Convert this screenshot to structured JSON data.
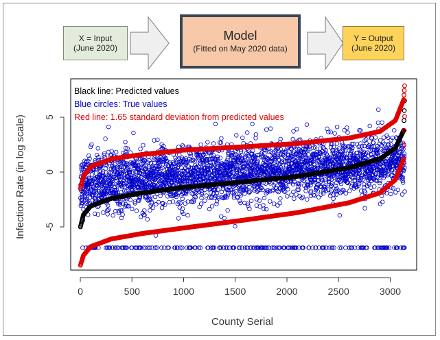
{
  "flow": {
    "input_label": "X = Input",
    "input_sub": "(June 2020)",
    "model_title": "Model",
    "model_sub": "(Fitted on May 2020 data)",
    "output_label": "Y = Output",
    "output_sub": "(June 2020)",
    "colors": {
      "input_fill": "#e3ecdc",
      "model_fill": "#f8c9a8",
      "model_border": "#3a4658",
      "output_fill": "#fdd35a",
      "arrow_fill": "#efefef"
    }
  },
  "chart_data": {
    "type": "scatter",
    "xlabel": "County Serial",
    "ylabel": "Infection Rate (in log scale)",
    "xlim": [
      0,
      3200
    ],
    "ylim": [
      -9,
      8
    ],
    "x_ticks": [
      "0",
      "500",
      "1000",
      "1500",
      "2000",
      "2500",
      "3000"
    ],
    "y_ticks": [
      "-5",
      "0",
      "5"
    ],
    "legend": [
      {
        "text": "Black line: Predicted values",
        "color": "#000000"
      },
      {
        "text": "Blue circles: True values",
        "color": "#0000cc"
      },
      {
        "text": "Red line: 1.65 standard deviation from predicted values",
        "color": "#e00000"
      }
    ],
    "n_points": 3140,
    "series": [
      {
        "role": "predicted",
        "color": "#000000",
        "anchors_x": [
          1,
          30,
          100,
          300,
          600,
          1000,
          1570,
          2100,
          2600,
          2900,
          3050,
          3130,
          3140
        ],
        "anchors_y": [
          -5.0,
          -3.9,
          -3.1,
          -2.4,
          -1.9,
          -1.4,
          -0.9,
          -0.4,
          0.4,
          1.2,
          2.2,
          3.8,
          6.8
        ]
      },
      {
        "role": "upper_bound",
        "color": "#e00000",
        "anchors_x": [
          1,
          30,
          100,
          300,
          600,
          1000,
          1570,
          2100,
          2600,
          2900,
          3050,
          3130,
          3140
        ],
        "anchors_y": [
          -1.5,
          -0.4,
          0.5,
          1.2,
          1.6,
          2.0,
          2.3,
          2.6,
          3.1,
          3.7,
          4.7,
          6.6,
          8.0
        ]
      },
      {
        "role": "lower_bound",
        "color": "#e00000",
        "anchors_x": [
          1,
          30,
          100,
          300,
          600,
          1000,
          1570,
          2100,
          2600,
          2900,
          3050,
          3130,
          3140
        ],
        "anchors_y": [
          -8.5,
          -7.6,
          -6.8,
          -6.1,
          -5.6,
          -5.1,
          -4.4,
          -3.7,
          -2.8,
          -1.9,
          -0.7,
          1.2,
          5.5
        ]
      },
      {
        "role": "true_values",
        "color": "#0000cc",
        "center_anchors_x": [
          0,
          500,
          1000,
          1570,
          2100,
          2600,
          3000,
          3140
        ],
        "center_anchors_y": [
          -1.0,
          -0.7,
          -0.4,
          0.0,
          0.2,
          0.5,
          0.8,
          1.0
        ],
        "spread": 1.3,
        "floor_value": -6.9
      }
    ]
  }
}
